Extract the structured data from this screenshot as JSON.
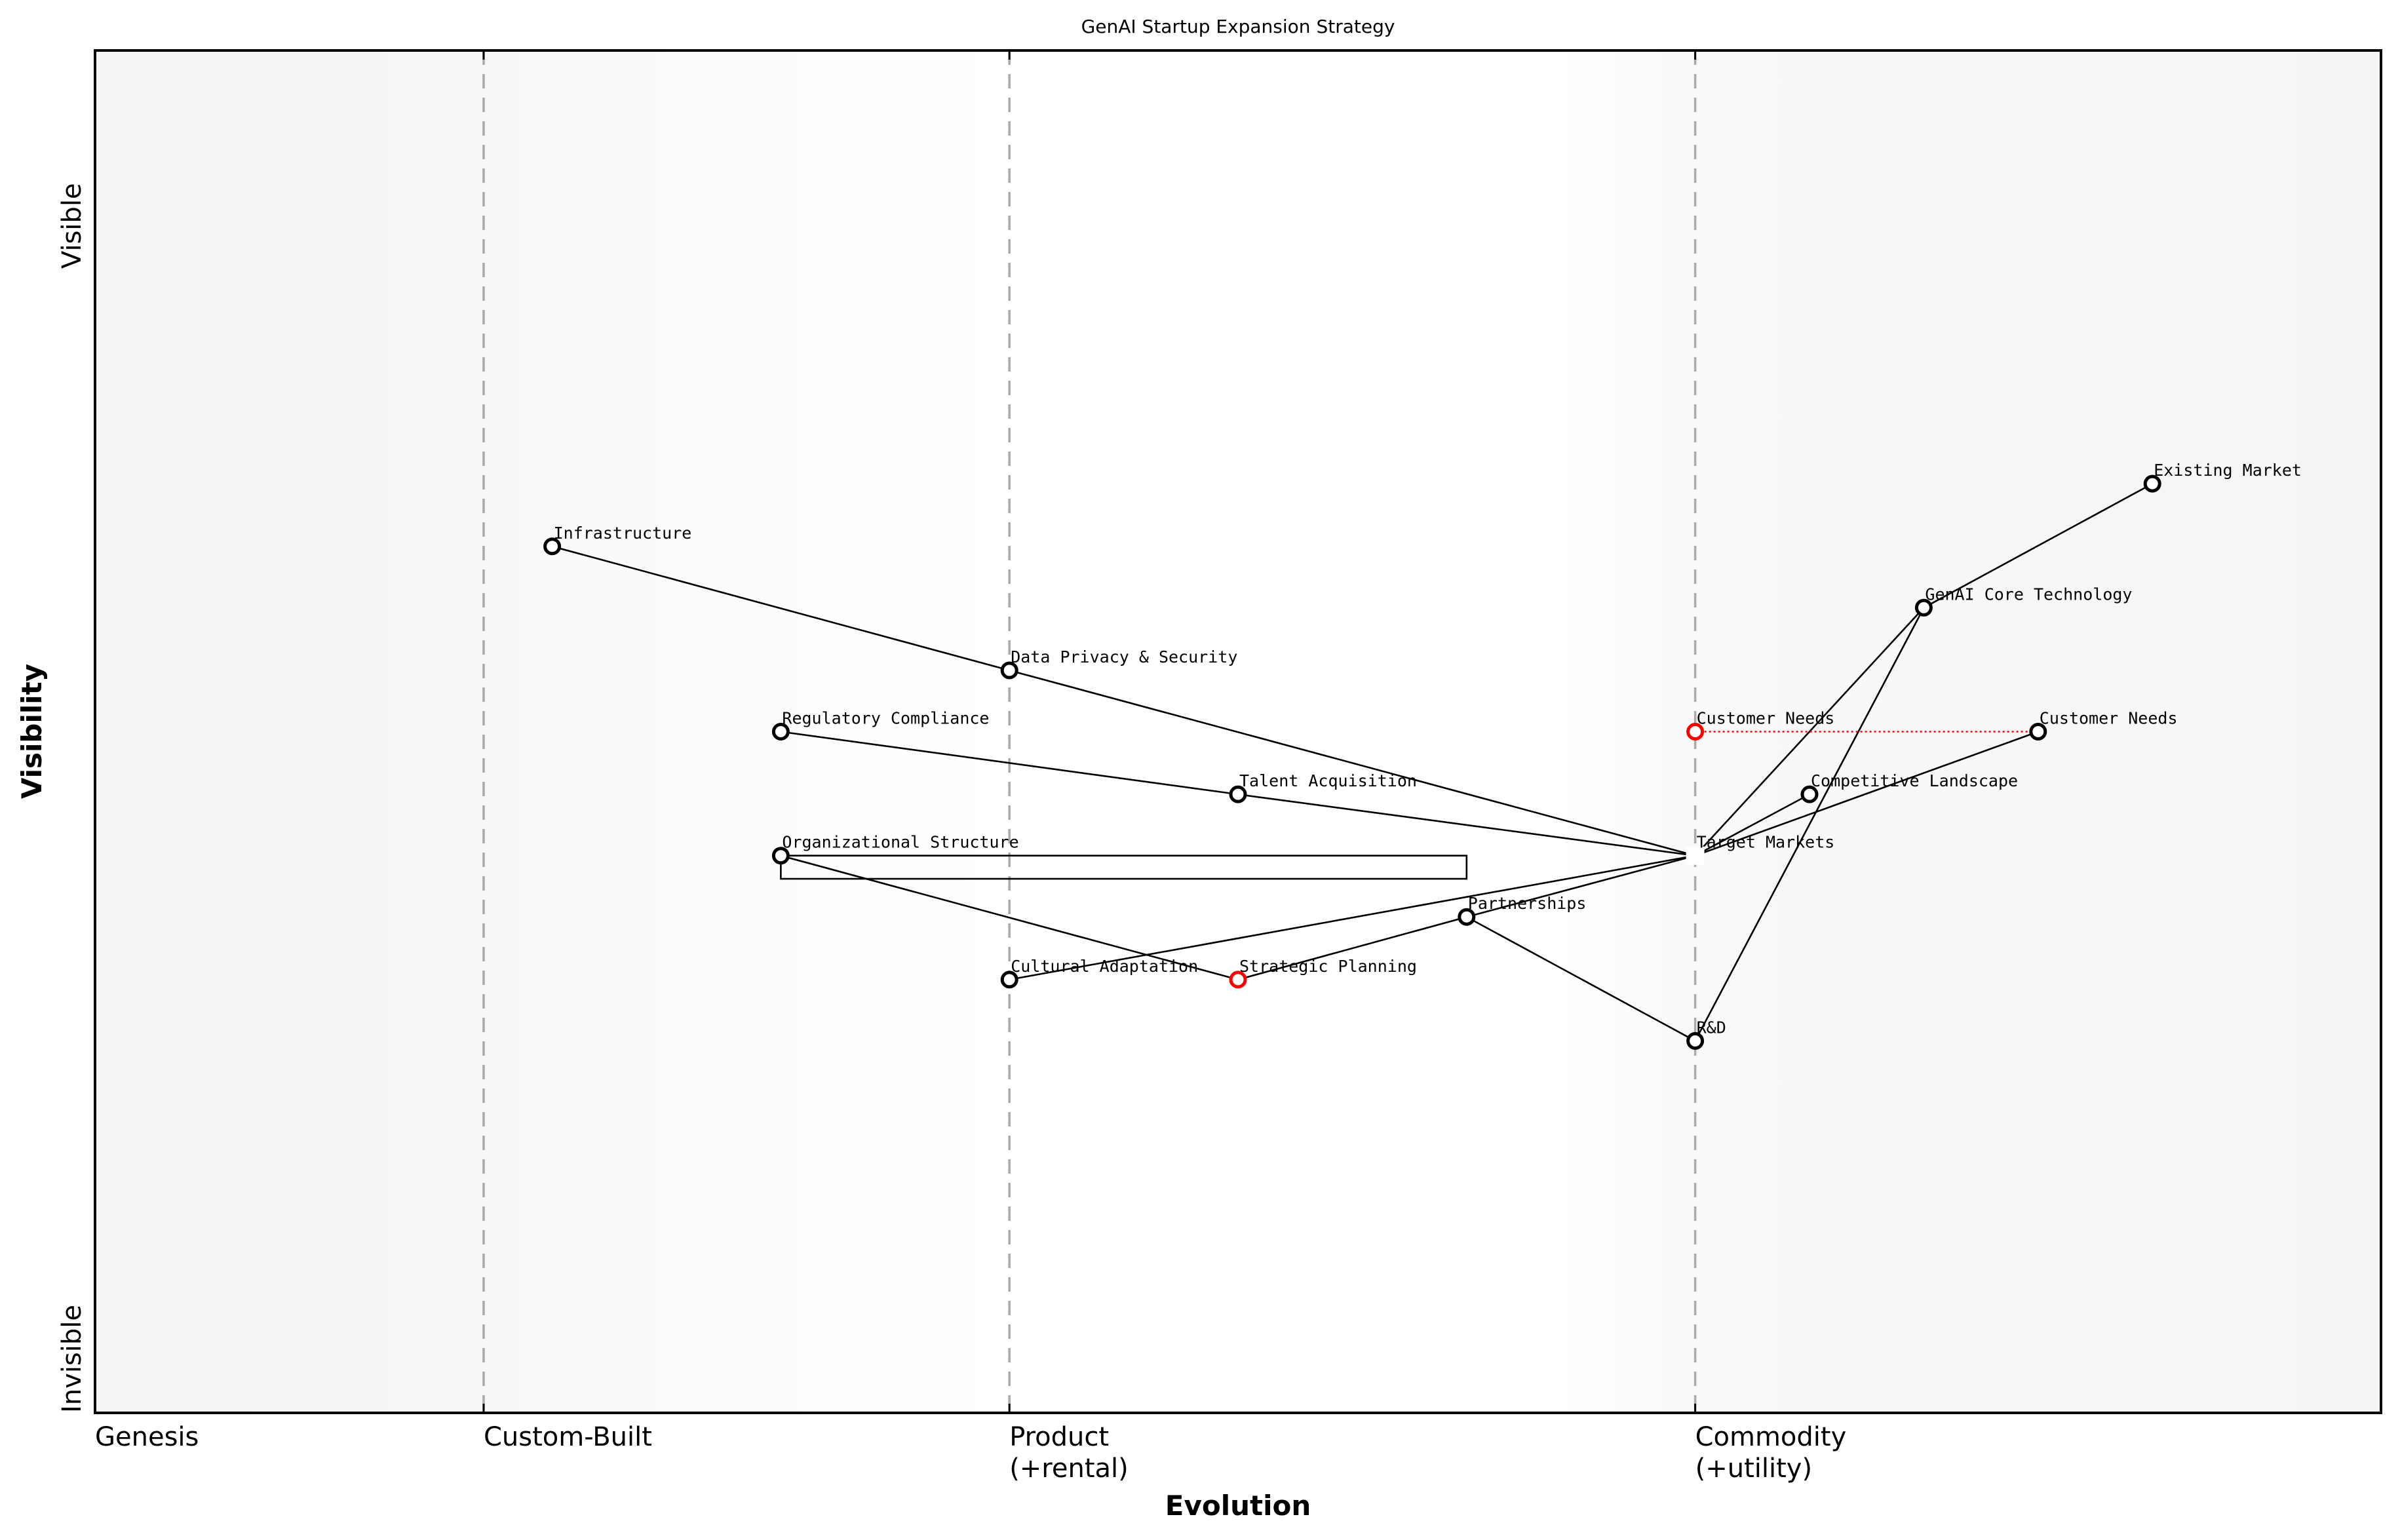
{
  "chart_data": {
    "type": "scatter",
    "title": "GenAI Startup Expansion Strategy",
    "xlabel": "Evolution",
    "ylabel": "Visibility",
    "xlim": [
      0,
      1
    ],
    "ylim": [
      0,
      1
    ],
    "grid": false,
    "x_ticks": [
      {
        "pos": 0.0,
        "label": "Genesis"
      },
      {
        "pos": 0.17,
        "label": "Custom-Built"
      },
      {
        "pos": 0.4,
        "label": "Product\n(+rental)"
      },
      {
        "pos": 0.7,
        "label": "Commodity\n(+utility)"
      }
    ],
    "y_ticks": [
      {
        "pos": 0.0,
        "label": "Invisible"
      },
      {
        "pos": 0.95,
        "label": "Visible"
      }
    ],
    "stage_lines": [
      0.17,
      0.4,
      0.7
    ],
    "components": [
      {
        "id": "existing_market",
        "name": "Existing Market",
        "evolution": 0.9,
        "visibility": 0.682,
        "color": "#000000"
      },
      {
        "id": "infrastructure",
        "name": "Infrastructure",
        "evolution": 0.2,
        "visibility": 0.636,
        "color": "#000000"
      },
      {
        "id": "genai_core",
        "name": "GenAI Core Technology",
        "evolution": 0.8,
        "visibility": 0.591,
        "color": "#000000"
      },
      {
        "id": "data_privacy",
        "name": "Data Privacy & Security",
        "evolution": 0.4,
        "visibility": 0.545,
        "color": "#000000"
      },
      {
        "id": "regulatory",
        "name": "Regulatory Compliance",
        "evolution": 0.3,
        "visibility": 0.5,
        "color": "#000000"
      },
      {
        "id": "customer_needs_old",
        "name": "Customer Needs",
        "evolution": 0.7,
        "visibility": 0.5,
        "color": "#ff0000"
      },
      {
        "id": "customer_needs",
        "name": "Customer Needs",
        "evolution": 0.85,
        "visibility": 0.5,
        "color": "#000000"
      },
      {
        "id": "talent",
        "name": "Talent Acquisition",
        "evolution": 0.5,
        "visibility": 0.454,
        "color": "#000000"
      },
      {
        "id": "competitive",
        "name": "Competitive Landscape",
        "evolution": 0.75,
        "visibility": 0.454,
        "color": "#000000"
      },
      {
        "id": "org_structure",
        "name": "Organizational Structure",
        "evolution": 0.3,
        "visibility": 0.409,
        "color": "#000000"
      },
      {
        "id": "target_markets",
        "name": "Target Markets",
        "evolution": 0.7,
        "visibility": 0.409,
        "color": "#ffffff"
      },
      {
        "id": "partnerships",
        "name": "Partnerships",
        "evolution": 0.6,
        "visibility": 0.364,
        "color": "#000000"
      },
      {
        "id": "cultural",
        "name": "Cultural Adaptation",
        "evolution": 0.4,
        "visibility": 0.318,
        "color": "#000000"
      },
      {
        "id": "strategic",
        "name": "Strategic Planning",
        "evolution": 0.5,
        "visibility": 0.318,
        "color": "#ff0000"
      },
      {
        "id": "rnd",
        "name": "R&D",
        "evolution": 0.7,
        "visibility": 0.273,
        "color": "#000000"
      }
    ],
    "links": [
      [
        "infrastructure",
        "data_privacy"
      ],
      [
        "data_privacy",
        "target_markets"
      ],
      [
        "regulatory",
        "talent"
      ],
      [
        "talent",
        "target_markets"
      ],
      [
        "org_structure",
        "strategic"
      ],
      [
        "strategic",
        "partnerships"
      ],
      [
        "partnerships",
        "target_markets"
      ],
      [
        "cultural",
        "target_markets"
      ],
      [
        "partnerships",
        "rnd"
      ],
      [
        "rnd",
        "genai_core"
      ],
      [
        "genai_core",
        "existing_market"
      ],
      [
        "target_markets",
        "genai_core"
      ],
      [
        "target_markets",
        "competitive"
      ],
      [
        "target_markets",
        "customer_needs"
      ]
    ],
    "evolution_links": [
      {
        "from": "customer_needs_old",
        "to": "customer_needs",
        "color": "#ff0000",
        "style": "dotted"
      }
    ],
    "annotation_boxes": [
      {
        "x0": 0.3,
        "x1": 0.6,
        "y_top": 0.409,
        "y_bottom": 0.392
      }
    ]
  },
  "colors": {
    "background_edge": "#f5f5f5",
    "background_center": "#ffffff",
    "stage_line": "#aaaaaa",
    "highlight": "#ff0000"
  }
}
